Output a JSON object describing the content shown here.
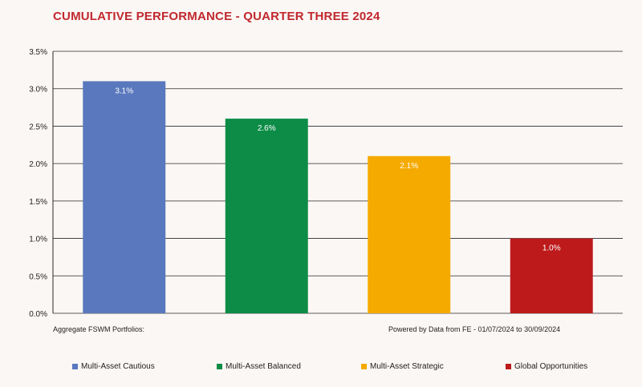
{
  "title": "CUMULATIVE PERFORMANCE - QUARTER THREE 2024",
  "footnote_left": "Aggregate FSWM Portfolios:",
  "footnote_right": "Powered by Data from FE - 01/07/2024 to 30/09/2024",
  "chart_data": {
    "type": "bar",
    "categories": [
      "Multi-Asset Cautious",
      "Multi-Asset Balanced",
      "Multi-Asset Strategic",
      "Global Opportunities"
    ],
    "values": [
      3.1,
      2.6,
      2.1,
      1.0
    ],
    "data_labels": [
      "3.1%",
      "2.6%",
      "2.1%",
      "1.0%"
    ],
    "colors": [
      "#5a78bd",
      "#0c8c46",
      "#f5aa00",
      "#bd1a1c"
    ],
    "ylim": [
      0,
      3.5
    ],
    "yticks": [
      0,
      0.5,
      1.0,
      1.5,
      2.0,
      2.5,
      3.0,
      3.5
    ],
    "ytick_labels": [
      "0.0%",
      "0.5%",
      "1.0%",
      "1.5%",
      "2.0%",
      "2.5%",
      "3.0%",
      "3.5%"
    ],
    "grid": true,
    "legend_position": "bottom"
  }
}
